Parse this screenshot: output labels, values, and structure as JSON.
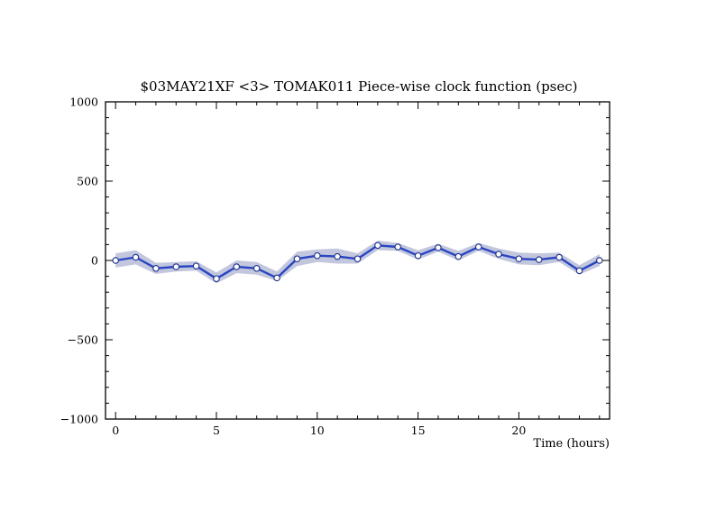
{
  "chart_data": {
    "type": "line",
    "title": "$03MAY21XF <3>  TOMAK011  Piece-wise clock function (psec)",
    "xlabel": "Time (hours)",
    "ylabel": "",
    "xlim": [
      -0.5,
      24.5
    ],
    "ylim": [
      -1000,
      1000
    ],
    "x_ticks": [
      0,
      5,
      10,
      15,
      20
    ],
    "y_ticks": [
      1000,
      500,
      0,
      -500,
      -1000
    ],
    "y_tick_labels": [
      "1000",
      "500",
      "0",
      "−500",
      "−1000"
    ],
    "grid": false,
    "legend": "none",
    "colors": {
      "line": "#2a45c4",
      "band": "#c2c7dd",
      "marker_fill": "#ffffff",
      "marker_stroke": "#1c2f8c",
      "axes": "#000000"
    },
    "series": [
      {
        "x": [
          0,
          1,
          2,
          3,
          4,
          5,
          6,
          7,
          8,
          9,
          10,
          11,
          12,
          13,
          14,
          15,
          16,
          17,
          18,
          19,
          20,
          21,
          22,
          23,
          24
        ],
        "values": [
          0,
          20,
          -50,
          -40,
          -35,
          -115,
          -40,
          -50,
          -110,
          10,
          30,
          25,
          10,
          95,
          85,
          30,
          80,
          25,
          85,
          40,
          10,
          5,
          20,
          -65,
          0
        ],
        "band_upper": [
          45,
          65,
          -15,
          -10,
          -5,
          -75,
          0,
          -10,
          -70,
          55,
          70,
          75,
          45,
          125,
          110,
          65,
          105,
          60,
          110,
          75,
          50,
          45,
          50,
          -30,
          40
        ],
        "band_lower": [
          -45,
          -25,
          -85,
          -70,
          -65,
          -145,
          -80,
          -90,
          -130,
          -35,
          -10,
          -20,
          -20,
          65,
          60,
          5,
          55,
          0,
          60,
          10,
          -25,
          -30,
          -10,
          -90,
          -35
        ]
      }
    ]
  }
}
